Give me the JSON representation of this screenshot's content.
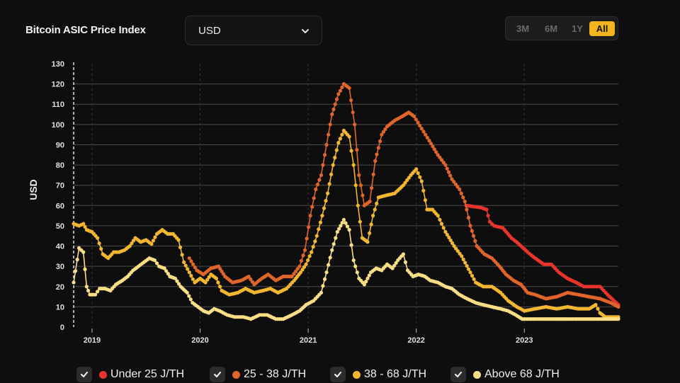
{
  "header": {
    "title": "Bitcoin ASIC Price Index",
    "currency_value": "USD",
    "range_buttons": [
      "3M",
      "6M",
      "1Y",
      "All"
    ],
    "active_range": "All"
  },
  "legend": [
    {
      "label": "Under 25 J/TH",
      "color": "#e8342b"
    },
    {
      "label": "25 - 38 J/TH",
      "color": "#e0652a"
    },
    {
      "label": "38 - 68 J/TH",
      "color": "#f2b630"
    },
    {
      "label": "Above 68 J/TH",
      "color": "#f9de86"
    }
  ],
  "chart_data": {
    "type": "line",
    "title": "",
    "xlabel": "",
    "ylabel": "USD",
    "ylim": [
      0,
      130
    ],
    "yticks": [
      0,
      10,
      20,
      30,
      40,
      50,
      60,
      70,
      80,
      90,
      100,
      110,
      120,
      130
    ],
    "xlim": [
      2018.83,
      2023.87
    ],
    "xticks": [
      {
        "value": 2019,
        "label": "2019"
      },
      {
        "value": 2020,
        "label": "2020"
      },
      {
        "value": 2021,
        "label": "2021"
      },
      {
        "value": 2022,
        "label": "2022"
      },
      {
        "value": 2023,
        "label": "2023"
      }
    ],
    "grid": "horizontal",
    "series": [
      {
        "name": "Under 25 J/TH",
        "color": "#e8342b",
        "points": [
          [
            2022.46,
            60
          ],
          [
            2022.6,
            59
          ],
          [
            2022.65,
            58
          ],
          [
            2022.68,
            52
          ],
          [
            2022.72,
            50
          ],
          [
            2022.8,
            49
          ],
          [
            2022.88,
            44
          ],
          [
            2022.95,
            41
          ],
          [
            2023.03,
            37
          ],
          [
            2023.1,
            34
          ],
          [
            2023.18,
            31
          ],
          [
            2023.25,
            31
          ],
          [
            2023.32,
            27
          ],
          [
            2023.4,
            24
          ],
          [
            2023.48,
            22
          ],
          [
            2023.55,
            20
          ],
          [
            2023.63,
            20
          ],
          [
            2023.7,
            20
          ],
          [
            2023.77,
            16
          ],
          [
            2023.87,
            11
          ]
        ]
      },
      {
        "name": "25 - 38 J/TH",
        "color": "#e0652a",
        "points": [
          [
            2019.9,
            34
          ],
          [
            2019.97,
            28
          ],
          [
            2020.03,
            26
          ],
          [
            2020.1,
            29
          ],
          [
            2020.17,
            30
          ],
          [
            2020.23,
            25
          ],
          [
            2020.3,
            22
          ],
          [
            2020.38,
            23
          ],
          [
            2020.45,
            25
          ],
          [
            2020.5,
            21
          ],
          [
            2020.57,
            24
          ],
          [
            2020.63,
            26
          ],
          [
            2020.7,
            23
          ],
          [
            2020.77,
            25
          ],
          [
            2020.85,
            25
          ],
          [
            2020.92,
            30
          ],
          [
            2020.97,
            38
          ],
          [
            2021.02,
            55
          ],
          [
            2021.07,
            68
          ],
          [
            2021.12,
            75
          ],
          [
            2021.17,
            90
          ],
          [
            2021.22,
            105
          ],
          [
            2021.28,
            115
          ],
          [
            2021.33,
            120
          ],
          [
            2021.38,
            118
          ],
          [
            2021.43,
            100
          ],
          [
            2021.47,
            75
          ],
          [
            2021.52,
            60
          ],
          [
            2021.57,
            62
          ],
          [
            2021.62,
            82
          ],
          [
            2021.68,
            95
          ],
          [
            2021.73,
            99
          ],
          [
            2021.8,
            102
          ],
          [
            2021.87,
            104
          ],
          [
            2021.93,
            106
          ],
          [
            2021.98,
            104
          ],
          [
            2022.05,
            98
          ],
          [
            2022.12,
            92
          ],
          [
            2022.2,
            85
          ],
          [
            2022.27,
            80
          ],
          [
            2022.33,
            73
          ],
          [
            2022.4,
            68
          ],
          [
            2022.45,
            62
          ],
          [
            2022.5,
            50
          ],
          [
            2022.56,
            40
          ],
          [
            2022.63,
            36
          ],
          [
            2022.7,
            34
          ],
          [
            2022.77,
            30
          ],
          [
            2022.83,
            26
          ],
          [
            2022.9,
            23
          ],
          [
            2022.97,
            21
          ],
          [
            2023.03,
            17
          ],
          [
            2023.1,
            16
          ],
          [
            2023.2,
            14
          ],
          [
            2023.3,
            15
          ],
          [
            2023.4,
            17
          ],
          [
            2023.5,
            16
          ],
          [
            2023.6,
            15
          ],
          [
            2023.7,
            14
          ],
          [
            2023.8,
            12
          ],
          [
            2023.87,
            10
          ]
        ]
      },
      {
        "name": "38 - 68 J/TH",
        "color": "#f2b630",
        "points": [
          [
            2018.83,
            51
          ],
          [
            2018.88,
            50
          ],
          [
            2018.92,
            51
          ],
          [
            2018.95,
            48
          ],
          [
            2019.0,
            47
          ],
          [
            2019.05,
            44
          ],
          [
            2019.1,
            36
          ],
          [
            2019.15,
            34
          ],
          [
            2019.2,
            37
          ],
          [
            2019.25,
            37
          ],
          [
            2019.3,
            38
          ],
          [
            2019.35,
            40
          ],
          [
            2019.4,
            44
          ],
          [
            2019.45,
            42
          ],
          [
            2019.5,
            43
          ],
          [
            2019.55,
            41
          ],
          [
            2019.6,
            46
          ],
          [
            2019.65,
            48
          ],
          [
            2019.7,
            46
          ],
          [
            2019.75,
            46
          ],
          [
            2019.8,
            43
          ],
          [
            2019.85,
            32
          ],
          [
            2019.9,
            27
          ],
          [
            2019.95,
            22
          ],
          [
            2020.0,
            24
          ],
          [
            2020.05,
            22
          ],
          [
            2020.1,
            26
          ],
          [
            2020.15,
            24
          ],
          [
            2020.2,
            18
          ],
          [
            2020.27,
            16
          ],
          [
            2020.35,
            17
          ],
          [
            2020.42,
            19
          ],
          [
            2020.5,
            17
          ],
          [
            2020.58,
            18
          ],
          [
            2020.65,
            19
          ],
          [
            2020.72,
            17
          ],
          [
            2020.8,
            19
          ],
          [
            2020.87,
            23
          ],
          [
            2020.93,
            27
          ],
          [
            2020.98,
            31
          ],
          [
            2021.03,
            37
          ],
          [
            2021.08,
            45
          ],
          [
            2021.13,
            55
          ],
          [
            2021.18,
            66
          ],
          [
            2021.23,
            80
          ],
          [
            2021.28,
            91
          ],
          [
            2021.33,
            97
          ],
          [
            2021.38,
            94
          ],
          [
            2021.42,
            80
          ],
          [
            2021.46,
            60
          ],
          [
            2021.5,
            44
          ],
          [
            2021.55,
            42
          ],
          [
            2021.6,
            55
          ],
          [
            2021.65,
            64
          ],
          [
            2021.72,
            65
          ],
          [
            2021.8,
            66
          ],
          [
            2021.88,
            70
          ],
          [
            2021.95,
            75
          ],
          [
            2022.0,
            78
          ],
          [
            2022.05,
            72
          ],
          [
            2022.1,
            58
          ],
          [
            2022.15,
            58
          ],
          [
            2022.2,
            55
          ],
          [
            2022.27,
            47
          ],
          [
            2022.35,
            40
          ],
          [
            2022.42,
            35
          ],
          [
            2022.5,
            27
          ],
          [
            2022.55,
            22
          ],
          [
            2022.62,
            20
          ],
          [
            2022.7,
            20
          ],
          [
            2022.78,
            17
          ],
          [
            2022.85,
            13
          ],
          [
            2022.93,
            10
          ],
          [
            2023.0,
            8
          ],
          [
            2023.1,
            9
          ],
          [
            2023.2,
            10
          ],
          [
            2023.3,
            9
          ],
          [
            2023.4,
            10
          ],
          [
            2023.5,
            9
          ],
          [
            2023.6,
            9
          ],
          [
            2023.66,
            11
          ],
          [
            2023.7,
            7
          ],
          [
            2023.75,
            5
          ],
          [
            2023.87,
            5
          ]
        ]
      },
      {
        "name": "Above 68 J/TH",
        "color": "#f9de86",
        "points": [
          [
            2018.83,
            22
          ],
          [
            2018.88,
            39
          ],
          [
            2018.92,
            37
          ],
          [
            2018.95,
            20
          ],
          [
            2018.98,
            16
          ],
          [
            2019.03,
            16
          ],
          [
            2019.07,
            19
          ],
          [
            2019.12,
            19
          ],
          [
            2019.17,
            18
          ],
          [
            2019.22,
            21
          ],
          [
            2019.28,
            23
          ],
          [
            2019.33,
            25
          ],
          [
            2019.38,
            28
          ],
          [
            2019.43,
            30
          ],
          [
            2019.48,
            32
          ],
          [
            2019.53,
            34
          ],
          [
            2019.58,
            33
          ],
          [
            2019.62,
            30
          ],
          [
            2019.67,
            29
          ],
          [
            2019.72,
            25
          ],
          [
            2019.77,
            24
          ],
          [
            2019.82,
            20
          ],
          [
            2019.88,
            17
          ],
          [
            2019.93,
            12
          ],
          [
            2019.98,
            10
          ],
          [
            2020.03,
            8
          ],
          [
            2020.08,
            7
          ],
          [
            2020.13,
            9
          ],
          [
            2020.18,
            8
          ],
          [
            2020.25,
            6
          ],
          [
            2020.32,
            5
          ],
          [
            2020.4,
            5
          ],
          [
            2020.47,
            4
          ],
          [
            2020.55,
            6
          ],
          [
            2020.62,
            6
          ],
          [
            2020.7,
            4
          ],
          [
            2020.77,
            4
          ],
          [
            2020.85,
            6
          ],
          [
            2020.92,
            8
          ],
          [
            2020.98,
            11
          ],
          [
            2021.05,
            13
          ],
          [
            2021.12,
            17
          ],
          [
            2021.17,
            27
          ],
          [
            2021.22,
            38
          ],
          [
            2021.27,
            47
          ],
          [
            2021.33,
            53
          ],
          [
            2021.38,
            48
          ],
          [
            2021.42,
            33
          ],
          [
            2021.47,
            24
          ],
          [
            2021.52,
            21
          ],
          [
            2021.58,
            27
          ],
          [
            2021.63,
            29
          ],
          [
            2021.68,
            28
          ],
          [
            2021.73,
            31
          ],
          [
            2021.78,
            29
          ],
          [
            2021.83,
            33
          ],
          [
            2021.88,
            36
          ],
          [
            2021.92,
            28
          ],
          [
            2021.97,
            25
          ],
          [
            2022.02,
            26
          ],
          [
            2022.08,
            25
          ],
          [
            2022.13,
            23
          ],
          [
            2022.2,
            22
          ],
          [
            2022.27,
            20
          ],
          [
            2022.33,
            19
          ],
          [
            2022.4,
            16
          ],
          [
            2022.47,
            14
          ],
          [
            2022.55,
            12
          ],
          [
            2022.62,
            11
          ],
          [
            2022.7,
            10
          ],
          [
            2022.78,
            9
          ],
          [
            2022.85,
            8
          ],
          [
            2022.92,
            6
          ],
          [
            2022.98,
            4
          ],
          [
            2023.05,
            4
          ],
          [
            2023.2,
            4
          ],
          [
            2023.4,
            4
          ],
          [
            2023.6,
            4
          ],
          [
            2023.87,
            4
          ]
        ]
      }
    ]
  }
}
